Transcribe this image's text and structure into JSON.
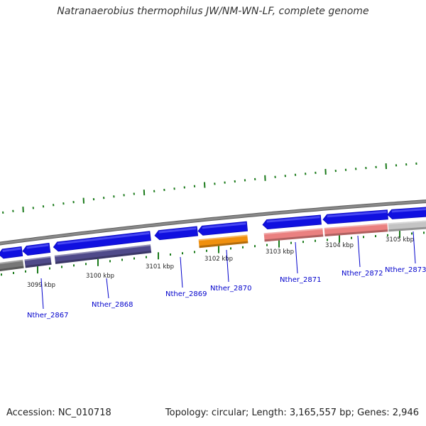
{
  "title": "Natranaerobius thermophilus JW/NM-WN-LF, complete genome",
  "footer": {
    "accession": "Accession: NC_010718",
    "summary": "Topology: circular; Length: 3,165,557 bp; Genes: 2,946"
  },
  "colors": {
    "backbone": "#8a8a8a",
    "gene_forward": "#1010e0",
    "gene_blue_dark": "#0b0bc4",
    "ticks": "#1a7a1a",
    "cluster_gray": "#777777",
    "cluster_slate": "#4f4a8a",
    "cluster_orange": "#f0900f",
    "cluster_pink": "#ea8080",
    "cluster_silver": "#c4c4c4",
    "label_blue": "#0000cc"
  },
  "scale_labels": [
    {
      "text": "3099 kbp"
    },
    {
      "text": "3100 kbp"
    },
    {
      "text": "3101 kbp"
    },
    {
      "text": "3102 kbp"
    },
    {
      "text": "3103 kbp"
    },
    {
      "text": "3104 kbp"
    },
    {
      "text": "3105 kbp"
    }
  ],
  "gene_labels": [
    {
      "text": "Nther_2867"
    },
    {
      "text": "Nther_2868"
    },
    {
      "text": "Nther_2869"
    },
    {
      "text": "Nther_2870"
    },
    {
      "text": "Nther_2871"
    },
    {
      "text": "Nther_2872"
    },
    {
      "text": "Nther_2873"
    }
  ]
}
